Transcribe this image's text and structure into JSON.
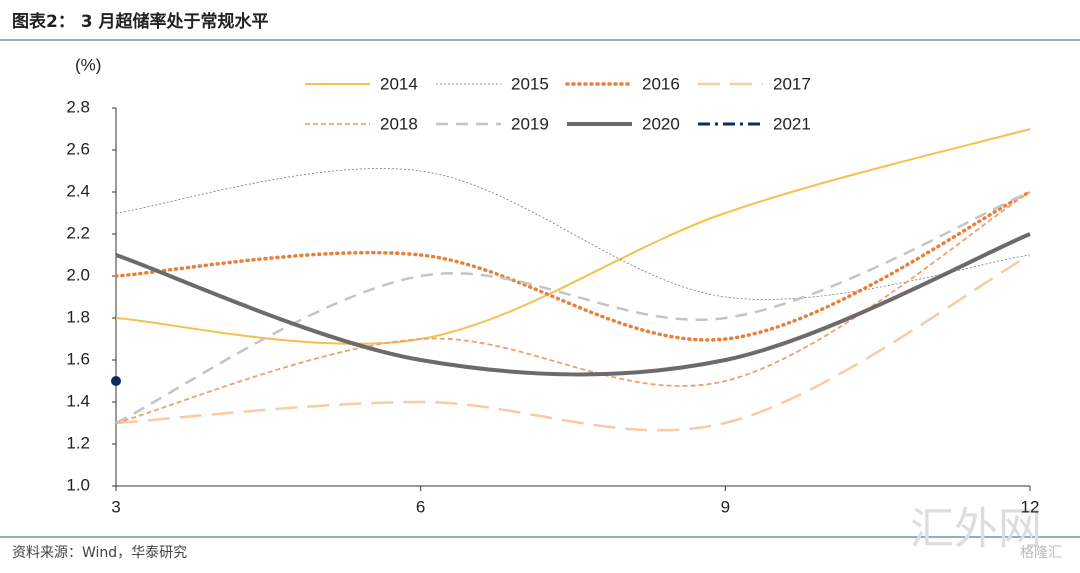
{
  "chart_data": {
    "type": "line",
    "title": "图表2： 3 月超储率处于常规水平",
    "y_label": "(%)",
    "source": "资料来源：Wind，华泰研究",
    "watermark": "汇外网",
    "watermark_logo": "格隆汇",
    "x": [
      3,
      6,
      9,
      12
    ],
    "xlim": [
      3,
      12
    ],
    "xticks": [
      3,
      6,
      9,
      12
    ],
    "ylim": [
      1.0,
      2.8
    ],
    "yticks": [
      {
        "value": 1.0,
        "label": "1.0"
      },
      1.2,
      1.4,
      1.6,
      1.8,
      {
        "value": 2.0,
        "label": "2.0"
      },
      2.2,
      2.4,
      2.6,
      2.8
    ],
    "smooth": true,
    "series": [
      {
        "name": "2014",
        "color": "#f2c14e",
        "style": "solid",
        "width": 2,
        "values": [
          1.8,
          1.7,
          2.3,
          2.7
        ]
      },
      {
        "name": "2015",
        "color": "#777777",
        "style": "thin",
        "width": 0.8,
        "values": [
          2.3,
          2.5,
          1.9,
          2.1
        ]
      },
      {
        "name": "2016",
        "color": "#e8803a",
        "style": "dotted",
        "width": 3.5,
        "values": [
          2.0,
          2.1,
          1.7,
          2.4
        ]
      },
      {
        "name": "2017",
        "color": "#f8cba4",
        "style": "longdash",
        "width": 2.5,
        "values": [
          1.3,
          1.4,
          1.3,
          2.1
        ]
      },
      {
        "name": "2018",
        "color": "#f0a070",
        "style": "shortdash",
        "width": 1.8,
        "values": [
          1.3,
          1.7,
          1.5,
          2.4
        ]
      },
      {
        "name": "2019",
        "color": "#c4c4c4",
        "style": "dashed",
        "width": 2.5,
        "values": [
          1.3,
          2.0,
          1.8,
          2.4
        ]
      },
      {
        "name": "2020",
        "color": "#6e6a6a",
        "style": "solid",
        "width": 4,
        "values": [
          2.1,
          1.6,
          1.6,
          2.2
        ]
      },
      {
        "name": "2021",
        "color": "#0f2a5c",
        "style": "dashdot",
        "width": 3,
        "values": [
          1.5,
          null,
          null,
          null
        ]
      }
    ]
  }
}
